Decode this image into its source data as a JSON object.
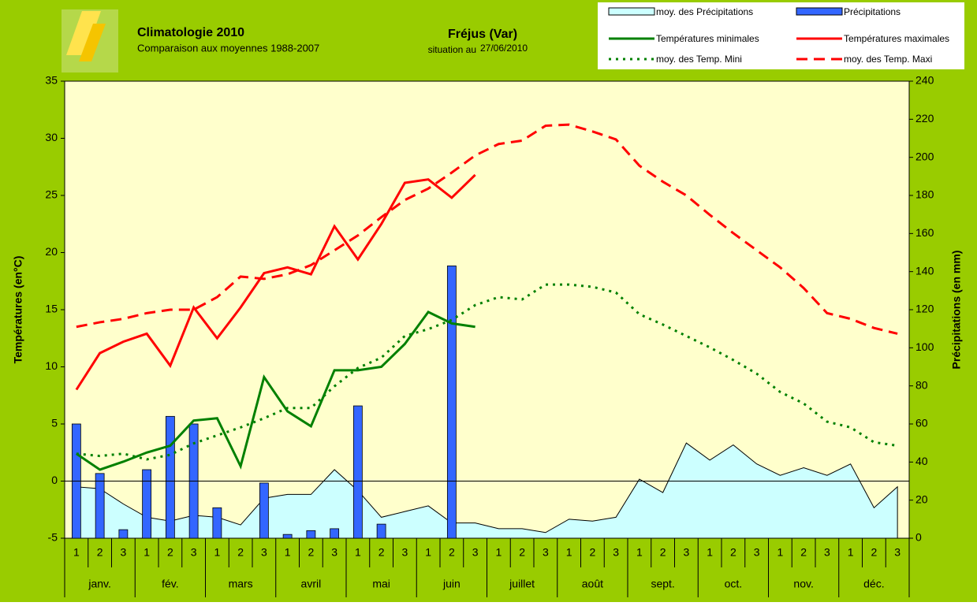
{
  "chart_data": {
    "type": "combo",
    "title": "Climatologie 2010",
    "subtitle": "Comparaison aux moyennes 1988-2007",
    "location": "Fréjus (Var)",
    "situation_label": "situation au",
    "situation_date": "27/06/2010",
    "ylabel": "Températures (en°C)",
    "y2label": "Précipitations (en mm)",
    "categories": [
      "1",
      "2",
      "3",
      "1",
      "2",
      "3",
      "1",
      "2",
      "3",
      "1",
      "2",
      "3",
      "1",
      "2",
      "3",
      "1",
      "2",
      "3",
      "1",
      "2",
      "3",
      "1",
      "2",
      "3",
      "1",
      "2",
      "3",
      "1",
      "2",
      "3",
      "1",
      "2",
      "3",
      "1",
      "2",
      "3"
    ],
    "groups": [
      "janv.",
      "fév.",
      "mars",
      "avril",
      "mai",
      "juin",
      "juillet",
      "août",
      "sept.",
      "oct.",
      "nov.",
      "déc."
    ],
    "ylim": [
      -5,
      35
    ],
    "yticks": [
      -5,
      0,
      5,
      10,
      15,
      20,
      25,
      30,
      35
    ],
    "y2lim": [
      0,
      240
    ],
    "y2ticks": [
      0,
      20,
      40,
      60,
      80,
      100,
      120,
      140,
      160,
      180,
      200,
      220,
      240
    ],
    "series": [
      {
        "name": "moy. des Précipitations",
        "color": "#ccffff",
        "style": "area",
        "axis": "y2",
        "values": [
          27,
          26,
          18,
          11,
          9,
          12,
          11,
          7,
          21,
          23,
          23,
          36,
          25,
          11,
          14,
          17,
          8,
          8,
          5,
          5,
          3,
          10,
          9,
          11,
          31,
          24,
          50,
          41,
          49,
          39,
          33,
          37,
          33,
          39,
          16,
          27
        ]
      },
      {
        "name": "Précipitations",
        "color": "#3366ff",
        "style": "bar",
        "axis": "y2",
        "values": [
          60,
          34,
          4.5,
          36,
          64,
          60,
          16,
          0,
          29,
          2,
          4,
          5,
          69.5,
          7.4,
          0,
          0,
          143,
          0,
          null,
          null,
          null,
          null,
          null,
          null,
          null,
          null,
          null,
          null,
          null,
          null,
          null,
          null,
          null,
          null,
          null,
          null
        ]
      },
      {
        "name": "Températures minimales",
        "color": "#008000",
        "style": "line",
        "values": [
          2.4,
          1.0,
          1.7,
          2.5,
          3.1,
          5.3,
          5.5,
          1.3,
          9.1,
          6.1,
          4.8,
          9.7,
          9.7,
          10.0,
          12.0,
          14.8,
          13.8,
          13.5,
          null,
          null,
          null,
          null,
          null,
          null,
          null,
          null,
          null,
          null,
          null,
          null,
          null,
          null,
          null,
          null,
          null,
          null
        ]
      },
      {
        "name": "Températures maximales",
        "color": "#ff0000",
        "style": "line",
        "values": [
          8.0,
          11.2,
          12.2,
          12.9,
          10.1,
          15.2,
          12.5,
          15.2,
          18.2,
          18.7,
          18.1,
          22.3,
          19.4,
          22.5,
          26.1,
          26.4,
          24.8,
          26.8,
          null,
          null,
          null,
          null,
          null,
          null,
          null,
          null,
          null,
          null,
          null,
          null,
          null,
          null,
          null,
          null,
          null,
          null
        ]
      },
      {
        "name": "moy. des Temp. Mini",
        "color": "#008000",
        "style": "dotted",
        "values": [
          2.4,
          2.2,
          2.4,
          1.9,
          2.3,
          3.3,
          4.0,
          4.7,
          5.5,
          6.4,
          6.4,
          8.3,
          9.9,
          10.8,
          12.7,
          13.3,
          14.1,
          15.4,
          16.1,
          15.9,
          17.2,
          17.2,
          17.0,
          16.5,
          14.6,
          13.7,
          12.7,
          11.7,
          10.6,
          9.4,
          7.8,
          6.8,
          5.2,
          4.7,
          3.4,
          3.1
        ]
      },
      {
        "name": "moy. des Temp. Maxi",
        "color": "#ff0000",
        "style": "dashed",
        "values": [
          13.5,
          13.9,
          14.2,
          14.7,
          15.0,
          15.0,
          16.1,
          17.9,
          17.7,
          18.1,
          18.9,
          20.2,
          21.5,
          23.1,
          24.6,
          25.6,
          27.0,
          28.5,
          29.5,
          29.8,
          31.1,
          31.2,
          30.6,
          29.9,
          27.6,
          26.2,
          25.0,
          23.3,
          21.7,
          20.2,
          18.7,
          16.9,
          14.7,
          14.2,
          13.4,
          12.9
        ]
      }
    ]
  }
}
